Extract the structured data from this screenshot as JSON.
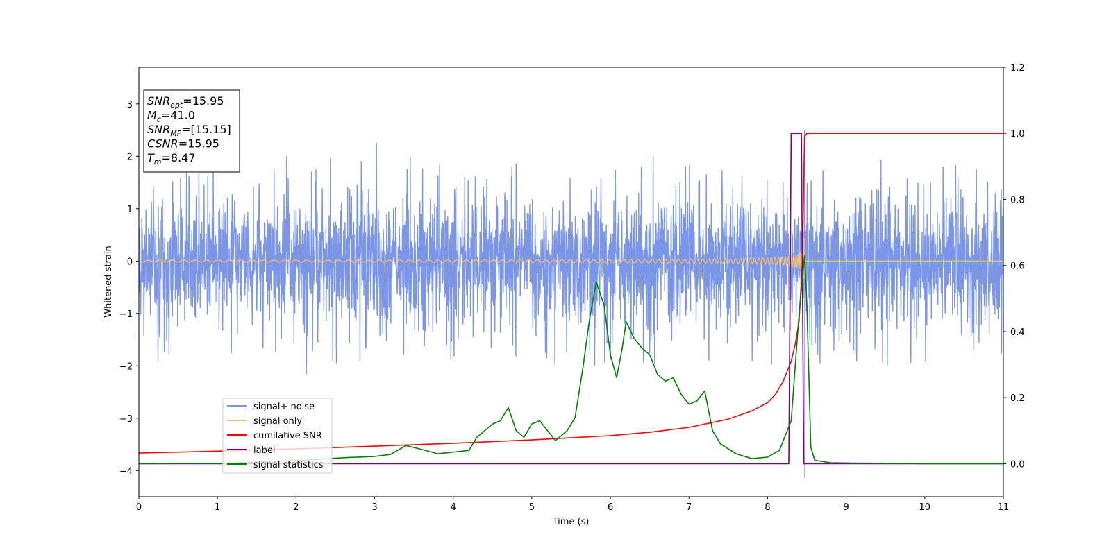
{
  "chart_data": {
    "type": "line",
    "xlabel": "Time (s)",
    "ylabel": "Whitened strain",
    "xlim": [
      0,
      11
    ],
    "ylim_left": [
      -4.5,
      3.7
    ],
    "ylim_right": [
      -0.1,
      1.2
    ],
    "x_ticks": [
      0,
      1,
      2,
      3,
      4,
      5,
      6,
      7,
      8,
      9,
      10,
      11
    ],
    "y_ticks_left": [
      -4,
      -3,
      -2,
      -1,
      0,
      1,
      2,
      3
    ],
    "y_ticks_right": [
      0.0,
      0.2,
      0.4,
      0.6,
      0.8,
      1.0,
      1.2
    ],
    "grid": false,
    "legend_placement": "lower-left",
    "info_box": {
      "lines": [
        {
          "base": "SNR",
          "sub": "opt",
          "value": "=15.95"
        },
        {
          "base": "M",
          "sub": "c",
          "value": "=41.0"
        },
        {
          "base": "SNR",
          "sub": "MF",
          "value": "=[15.15]"
        },
        {
          "base": "CSNR",
          "sub": "",
          "value": "=15.95"
        },
        {
          "base": "T",
          "sub": "m",
          "value": "=8.47"
        }
      ]
    },
    "series": [
      {
        "name": "signal+ noise",
        "axis": "left",
        "color": "#7b96e8",
        "kind": "noise",
        "envelope": {
          "typical_amplitude": 1.3,
          "min": -4.15,
          "max": 2.5,
          "merger_time": 8.47
        }
      },
      {
        "name": "signal only",
        "axis": "left",
        "color": "#f5c26b",
        "kind": "chirp",
        "envelope": {
          "merger_time": 8.47,
          "peak_amplitude": 0.75
        }
      },
      {
        "name": "cumilative SNR",
        "axis": "right",
        "color": "#ff0000",
        "x": [
          0,
          1,
          2,
          3,
          4,
          5,
          6,
          6.5,
          7,
          7.5,
          7.8,
          8.0,
          8.1,
          8.2,
          8.3,
          8.35,
          8.4,
          8.44,
          8.47,
          8.5,
          9,
          10,
          11
        ],
        "y": [
          0.032,
          0.038,
          0.045,
          0.053,
          0.062,
          0.072,
          0.085,
          0.095,
          0.11,
          0.135,
          0.16,
          0.185,
          0.21,
          0.25,
          0.31,
          0.36,
          0.43,
          0.6,
          0.99,
          1.0,
          1.0,
          1.0,
          1.0
        ]
      },
      {
        "name": "label",
        "axis": "right",
        "color": "#800080",
        "x": [
          0,
          8.27,
          8.3,
          8.43,
          8.46,
          11
        ],
        "y": [
          0,
          0,
          1.0,
          1.0,
          0,
          0
        ]
      },
      {
        "name": "signal statistics",
        "axis": "right",
        "color": "#008000",
        "x": [
          0,
          0.5,
          1.0,
          1.5,
          2.0,
          2.2,
          2.4,
          2.6,
          2.8,
          3.0,
          3.2,
          3.4,
          3.6,
          3.8,
          4.0,
          4.2,
          4.3,
          4.4,
          4.5,
          4.6,
          4.7,
          4.8,
          4.9,
          5.0,
          5.1,
          5.2,
          5.3,
          5.45,
          5.55,
          5.65,
          5.73,
          5.82,
          5.92,
          6.0,
          6.08,
          6.15,
          6.2,
          6.3,
          6.4,
          6.5,
          6.6,
          6.7,
          6.8,
          6.9,
          7.0,
          7.1,
          7.2,
          7.3,
          7.4,
          7.6,
          7.8,
          8.0,
          8.15,
          8.3,
          8.4,
          8.47,
          8.5,
          8.55,
          8.6,
          8.8,
          9.0,
          10,
          11
        ],
        "y": [
          0.0,
          0.001,
          0.001,
          0.005,
          0.01,
          0.012,
          0.015,
          0.018,
          0.02,
          0.022,
          0.028,
          0.055,
          0.043,
          0.03,
          0.035,
          0.04,
          0.08,
          0.1,
          0.12,
          0.13,
          0.17,
          0.1,
          0.08,
          0.12,
          0.13,
          0.1,
          0.07,
          0.1,
          0.14,
          0.29,
          0.43,
          0.55,
          0.48,
          0.33,
          0.26,
          0.35,
          0.43,
          0.38,
          0.35,
          0.33,
          0.27,
          0.25,
          0.26,
          0.21,
          0.18,
          0.19,
          0.22,
          0.1,
          0.06,
          0.03,
          0.015,
          0.02,
          0.04,
          0.13,
          0.45,
          0.63,
          0.48,
          0.05,
          0.01,
          0.003,
          0.002,
          0.0,
          0.0
        ]
      }
    ]
  }
}
